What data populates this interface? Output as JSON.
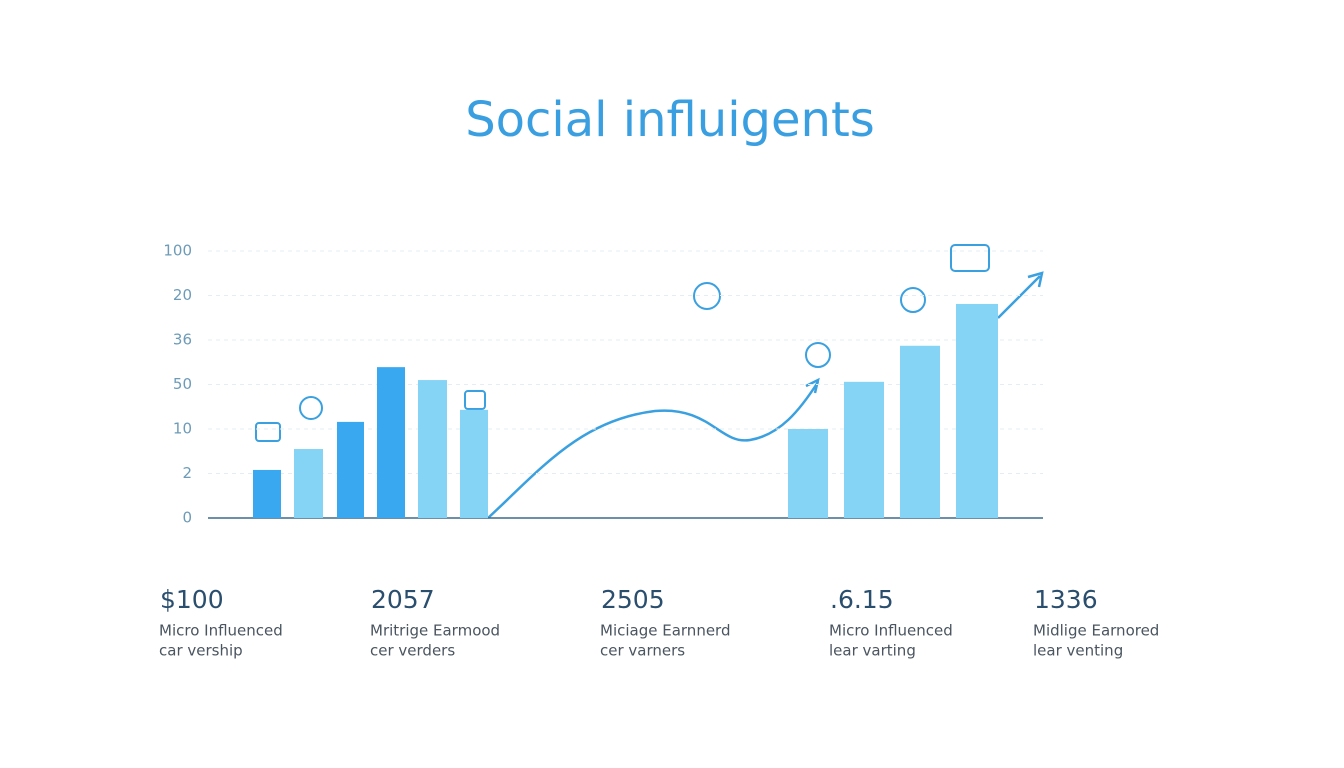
{
  "chart_data": {
    "type": "bar",
    "title": "Social influigents",
    "categories": [
      null,
      null,
      null,
      null,
      null,
      null,
      null,
      null,
      null,
      null
    ],
    "values": [
      1.08,
      1.55,
      2.16,
      3.39,
      3.1,
      2.43,
      2.0,
      3.06,
      3.87,
      4.81
    ],
    "colors": [
      "#3aa8f0",
      "#85d3f5",
      "#3aa8f0",
      "#3aa8f0",
      "#85d3f5",
      "#85d3f5",
      "#85d3f5",
      "#85d3f5",
      "#85d3f5",
      "#85d3f5"
    ],
    "ylim": [
      0,
      6
    ],
    "yticks": [
      0,
      {
        "value": 1,
        "label": "2"
      },
      {
        "value": 2,
        "label": "10"
      },
      {
        "value": 3,
        "label": "50"
      },
      {
        "value": 4,
        "label": "36"
      },
      {
        "value": 5,
        "label": "20"
      },
      {
        "value": 6,
        "label": "100"
      }
    ],
    "grid": true
  },
  "stats": [
    {
      "value": "$100",
      "label": [
        "Micro Influenced",
        "car vership"
      ]
    },
    {
      "value": "2057",
      "label": [
        "Mritrige Earmood",
        "cer verders"
      ]
    },
    {
      "value": "2505",
      "label": [
        "Miciage Earnnerd",
        "cer varners"
      ]
    },
    {
      "value": ".6.15",
      "label": [
        "Micro Influenced",
        "lear varting"
      ]
    },
    {
      "value": "1336",
      "label": [
        "Midlige Earnored",
        "lear venting"
      ]
    }
  ]
}
